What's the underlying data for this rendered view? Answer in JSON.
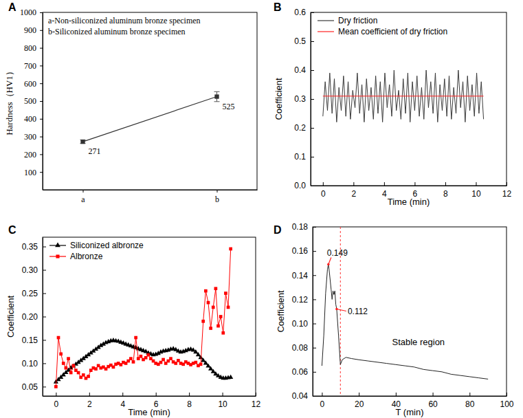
{
  "chart_data": [
    {
      "title": "A",
      "type": "line",
      "categories": [
        "a",
        "b"
      ],
      "y_label": "Hardness（HV1）",
      "ylim": [
        0,
        1000
      ],
      "yticks": [
        100,
        200,
        300,
        400,
        500,
        600,
        700,
        800,
        900,
        1000
      ],
      "annotations": [
        "a-Non-siliconized aluminum bronze specimen",
        "b-Siliconized aluminum bronze specimen"
      ],
      "data_labels": true,
      "series": [
        {
          "color": "#333333",
          "marker": "square",
          "values": [
            271,
            525
          ],
          "errors": [
            10,
            28
          ]
        }
      ]
    },
    {
      "title": "B",
      "type": "line",
      "x_label": "Time (min)",
      "y_label": "Coefficient",
      "xlim": [
        -0.8,
        12
      ],
      "xticks": [
        0,
        2,
        4,
        6,
        8,
        10,
        12
      ],
      "ylim": [
        0,
        0.6
      ],
      "yticks": [
        {
          "value": 0,
          "label": "0.0"
        },
        0.1,
        0.2,
        0.3,
        0.4,
        0.5,
        0.6
      ],
      "legend": "upper left",
      "x": [
        0,
        0.15,
        0.3,
        0.45,
        0.6,
        0.75,
        0.9,
        1.05,
        1.2,
        1.35,
        1.5,
        1.65,
        1.8,
        1.95,
        2.1,
        2.25,
        2.4,
        2.55,
        2.7,
        2.85,
        3,
        3.15,
        3.3,
        3.45,
        3.6,
        3.75,
        3.9,
        4.05,
        4.2,
        4.35,
        4.5,
        4.65,
        4.8,
        4.95,
        5.1,
        5.25,
        5.4,
        5.55,
        5.7,
        5.85,
        6,
        6.15,
        6.3,
        6.45,
        6.6,
        6.75,
        6.9,
        7.05,
        7.2,
        7.35,
        7.5,
        7.65,
        7.8,
        7.95,
        8.1,
        8.25,
        8.4,
        8.55,
        8.7,
        8.85,
        9,
        9.15,
        9.3,
        9.45,
        9.6,
        9.75,
        9.9,
        10.05,
        10.2,
        10.35,
        10.5
      ],
      "series": [
        {
          "name": "Dry friction",
          "color": "#3a3a3a",
          "values": [
            0.24,
            0.36,
            0.26,
            0.39,
            0.25,
            0.37,
            0.22,
            0.34,
            0.26,
            0.38,
            0.24,
            0.36,
            0.23,
            0.33,
            0.27,
            0.39,
            0.25,
            0.35,
            0.22,
            0.37,
            0.26,
            0.34,
            0.23,
            0.38,
            0.25,
            0.36,
            0.22,
            0.39,
            0.27,
            0.35,
            0.24,
            0.4,
            0.26,
            0.33,
            0.23,
            0.37,
            0.25,
            0.39,
            0.22,
            0.36,
            0.26,
            0.38,
            0.24,
            0.34,
            0.23,
            0.4,
            0.27,
            0.36,
            0.25,
            0.39,
            0.22,
            0.35,
            0.26,
            0.37,
            0.24,
            0.38,
            0.23,
            0.34,
            0.25,
            0.4,
            0.27,
            0.36,
            0.22,
            0.38,
            0.26,
            0.35,
            0.24,
            0.39,
            0.25,
            0.36,
            0.23
          ]
        },
        {
          "name": "Mean coefficient of dry friction",
          "color": "#ff2020",
          "x": [
            0,
            10.5
          ],
          "values": [
            0.31,
            0.31
          ]
        }
      ]
    },
    {
      "title": "C",
      "type": "line",
      "x_label": "Time (min)",
      "y_label": "Coefficient",
      "xlim": [
        -0.8,
        12
      ],
      "xticks": [
        0,
        2,
        4,
        6,
        8,
        10,
        12
      ],
      "ylim": [
        0.03,
        0.37
      ],
      "yticks": [
        0.05,
        {
          "value": 0.1,
          "label": "0.10"
        },
        0.15,
        {
          "value": 0.2,
          "label": "0.20"
        },
        0.25,
        {
          "value": 0.3,
          "label": "0.30"
        },
        0.35
      ],
      "legend": "upper left",
      "x": [
        0,
        0.15,
        0.3,
        0.45,
        0.6,
        0.75,
        0.9,
        1.05,
        1.2,
        1.35,
        1.5,
        1.65,
        1.8,
        1.95,
        2.1,
        2.25,
        2.4,
        2.55,
        2.7,
        2.85,
        3,
        3.15,
        3.3,
        3.45,
        3.6,
        3.75,
        3.9,
        4.05,
        4.2,
        4.35,
        4.5,
        4.65,
        4.8,
        4.95,
        5.1,
        5.25,
        5.4,
        5.55,
        5.7,
        5.85,
        6,
        6.15,
        6.3,
        6.45,
        6.6,
        6.75,
        6.9,
        7.05,
        7.2,
        7.35,
        7.5,
        7.65,
        7.8,
        7.95,
        8.1,
        8.25,
        8.4,
        8.55,
        8.7,
        8.85,
        9,
        9.15,
        9.3,
        9.45,
        9.6,
        9.75,
        9.9,
        10.05,
        10.2,
        10.35,
        10.5
      ],
      "series": [
        {
          "name": "Siliconized albronze",
          "color": "#000000",
          "marker": "triangle",
          "values": [
            0.06,
            0.065,
            0.07,
            0.075,
            0.08,
            0.085,
            0.09,
            0.094,
            0.098,
            0.102,
            0.106,
            0.11,
            0.114,
            0.118,
            0.122,
            0.126,
            0.13,
            0.134,
            0.138,
            0.141,
            0.144,
            0.146,
            0.148,
            0.149,
            0.148,
            0.147,
            0.145,
            0.143,
            0.141,
            0.139,
            0.137,
            0.135,
            0.133,
            0.131,
            0.129,
            0.127,
            0.125,
            0.122,
            0.12,
            0.118,
            0.119,
            0.121,
            0.124,
            0.126,
            0.127,
            0.128,
            0.13,
            0.131,
            0.129,
            0.126,
            0.124,
            0.125,
            0.127,
            0.129,
            0.13,
            0.128,
            0.124,
            0.118,
            0.112,
            0.106,
            0.1,
            0.094,
            0.088,
            0.082,
            0.077,
            0.073,
            0.07,
            0.068,
            0.068,
            0.069,
            0.07
          ]
        },
        {
          "name": "Albronze",
          "color": "#ff0000",
          "marker": "square",
          "values": [
            0.05,
            0.155,
            0.12,
            0.1,
            0.09,
            0.11,
            0.08,
            0.095,
            0.085,
            0.08,
            0.07,
            0.075,
            0.068,
            0.072,
            0.085,
            0.09,
            0.088,
            0.095,
            0.09,
            0.092,
            0.088,
            0.093,
            0.096,
            0.092,
            0.098,
            0.1,
            0.097,
            0.102,
            0.1,
            0.105,
            0.11,
            0.103,
            0.155,
            0.11,
            0.115,
            0.108,
            0.112,
            0.118,
            0.11,
            0.105,
            0.1,
            0.098,
            0.102,
            0.108,
            0.1,
            0.105,
            0.11,
            0.103,
            0.1,
            0.106,
            0.1,
            0.098,
            0.103,
            0.1,
            0.097,
            0.1,
            0.102,
            0.095,
            0.098,
            0.19,
            0.255,
            0.23,
            0.175,
            0.22,
            0.26,
            0.18,
            0.2,
            0.165,
            0.25,
            0.22,
            0.345
          ]
        }
      ]
    },
    {
      "title": "D",
      "type": "line",
      "x_label": "T (min)",
      "y_label": "Coefficient",
      "xlim": [
        -5,
        100
      ],
      "xticks": [
        0,
        20,
        40,
        60,
        80,
        100
      ],
      "ylim": [
        0.04,
        0.18
      ],
      "yticks": [
        0.04,
        0.06,
        0.08,
        {
          "value": 0.1,
          "label": "0.10"
        },
        0.12,
        0.14,
        0.16,
        0.18
      ],
      "x": [
        0,
        1,
        2,
        3,
        3.5,
        4,
        5,
        5.5,
        6,
        6.5,
        7,
        7.5,
        8,
        9,
        10,
        11,
        13,
        16,
        20,
        25,
        30,
        35,
        40,
        45,
        50,
        55,
        60,
        65,
        70,
        75,
        80,
        85,
        90
      ],
      "series": [
        {
          "color": "#222222",
          "values": [
            0.065,
            0.09,
            0.125,
            0.145,
            0.149,
            0.143,
            0.128,
            0.12,
            0.127,
            0.124,
            0.127,
            0.116,
            0.112,
            0.09,
            0.066,
            0.07,
            0.072,
            0.071,
            0.07,
            0.069,
            0.068,
            0.067,
            0.066,
            0.065,
            0.064,
            0.062,
            0.061,
            0.06,
            0.058,
            0.057,
            0.056,
            0.055,
            0.054
          ]
        }
      ],
      "vline_x": 10,
      "point_labels": [
        {
          "text": "0.149",
          "x": 3.5,
          "y": 0.149
        },
        {
          "text": "0.112",
          "x": 8,
          "y": 0.112
        }
      ],
      "region_label": {
        "text": "Stable region",
        "x": 38,
        "y": 0.082
      }
    }
  ]
}
